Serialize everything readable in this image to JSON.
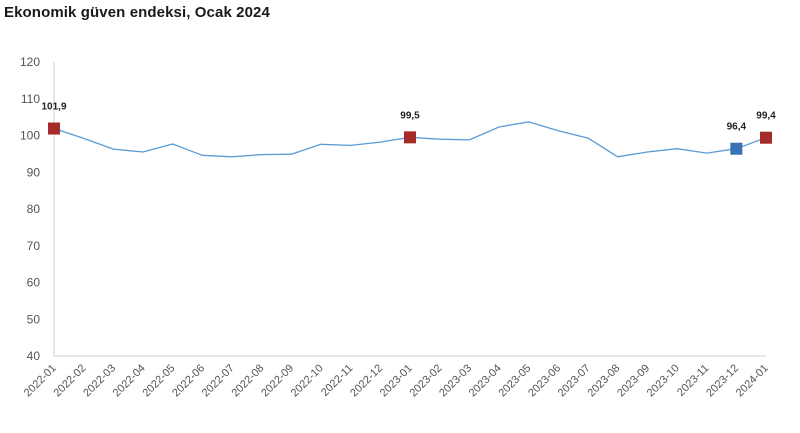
{
  "title": "Ekonomik güven endeksi, Ocak 2024",
  "chart_data": {
    "type": "line",
    "title": "Ekonomik güven endeksi, Ocak 2024",
    "xlabel": "",
    "ylabel": "",
    "ylim": [
      40,
      120
    ],
    "yticks": [
      40,
      50,
      60,
      70,
      80,
      90,
      100,
      110,
      120
    ],
    "grid": false,
    "categories": [
      "2022-01",
      "2022-02",
      "2022-03",
      "2022-04",
      "2022-05",
      "2022-06",
      "2022-07",
      "2022-08",
      "2022-09",
      "2022-10",
      "2022-11",
      "2022-12",
      "2023-01",
      "2023-02",
      "2023-03",
      "2023-04",
      "2023-05",
      "2023-06",
      "2023-07",
      "2023-08",
      "2023-09",
      "2023-10",
      "2023-11",
      "2023-12",
      "2024-01"
    ],
    "series": [
      {
        "values": [
          101.9,
          99.2,
          96.3,
          95.5,
          97.7,
          94.6,
          94.2,
          94.8,
          94.9,
          97.6,
          97.3,
          98.2,
          99.5,
          99.0,
          98.8,
          102.3,
          103.7,
          101.3,
          99.3,
          94.2,
          95.5,
          96.4,
          95.2,
          96.4,
          99.4
        ]
      }
    ],
    "markers": [
      {
        "index": 0,
        "label": "101,9",
        "color": "#a52a2a"
      },
      {
        "index": 12,
        "label": "99,5",
        "color": "#a52a2a"
      },
      {
        "index": 23,
        "label": "96,4",
        "color": "#3a72b4"
      },
      {
        "index": 24,
        "label": "99,4",
        "color": "#a52a2a"
      }
    ],
    "colors": {
      "line": "#5b9bd5",
      "axis": "#cccccc"
    }
  }
}
